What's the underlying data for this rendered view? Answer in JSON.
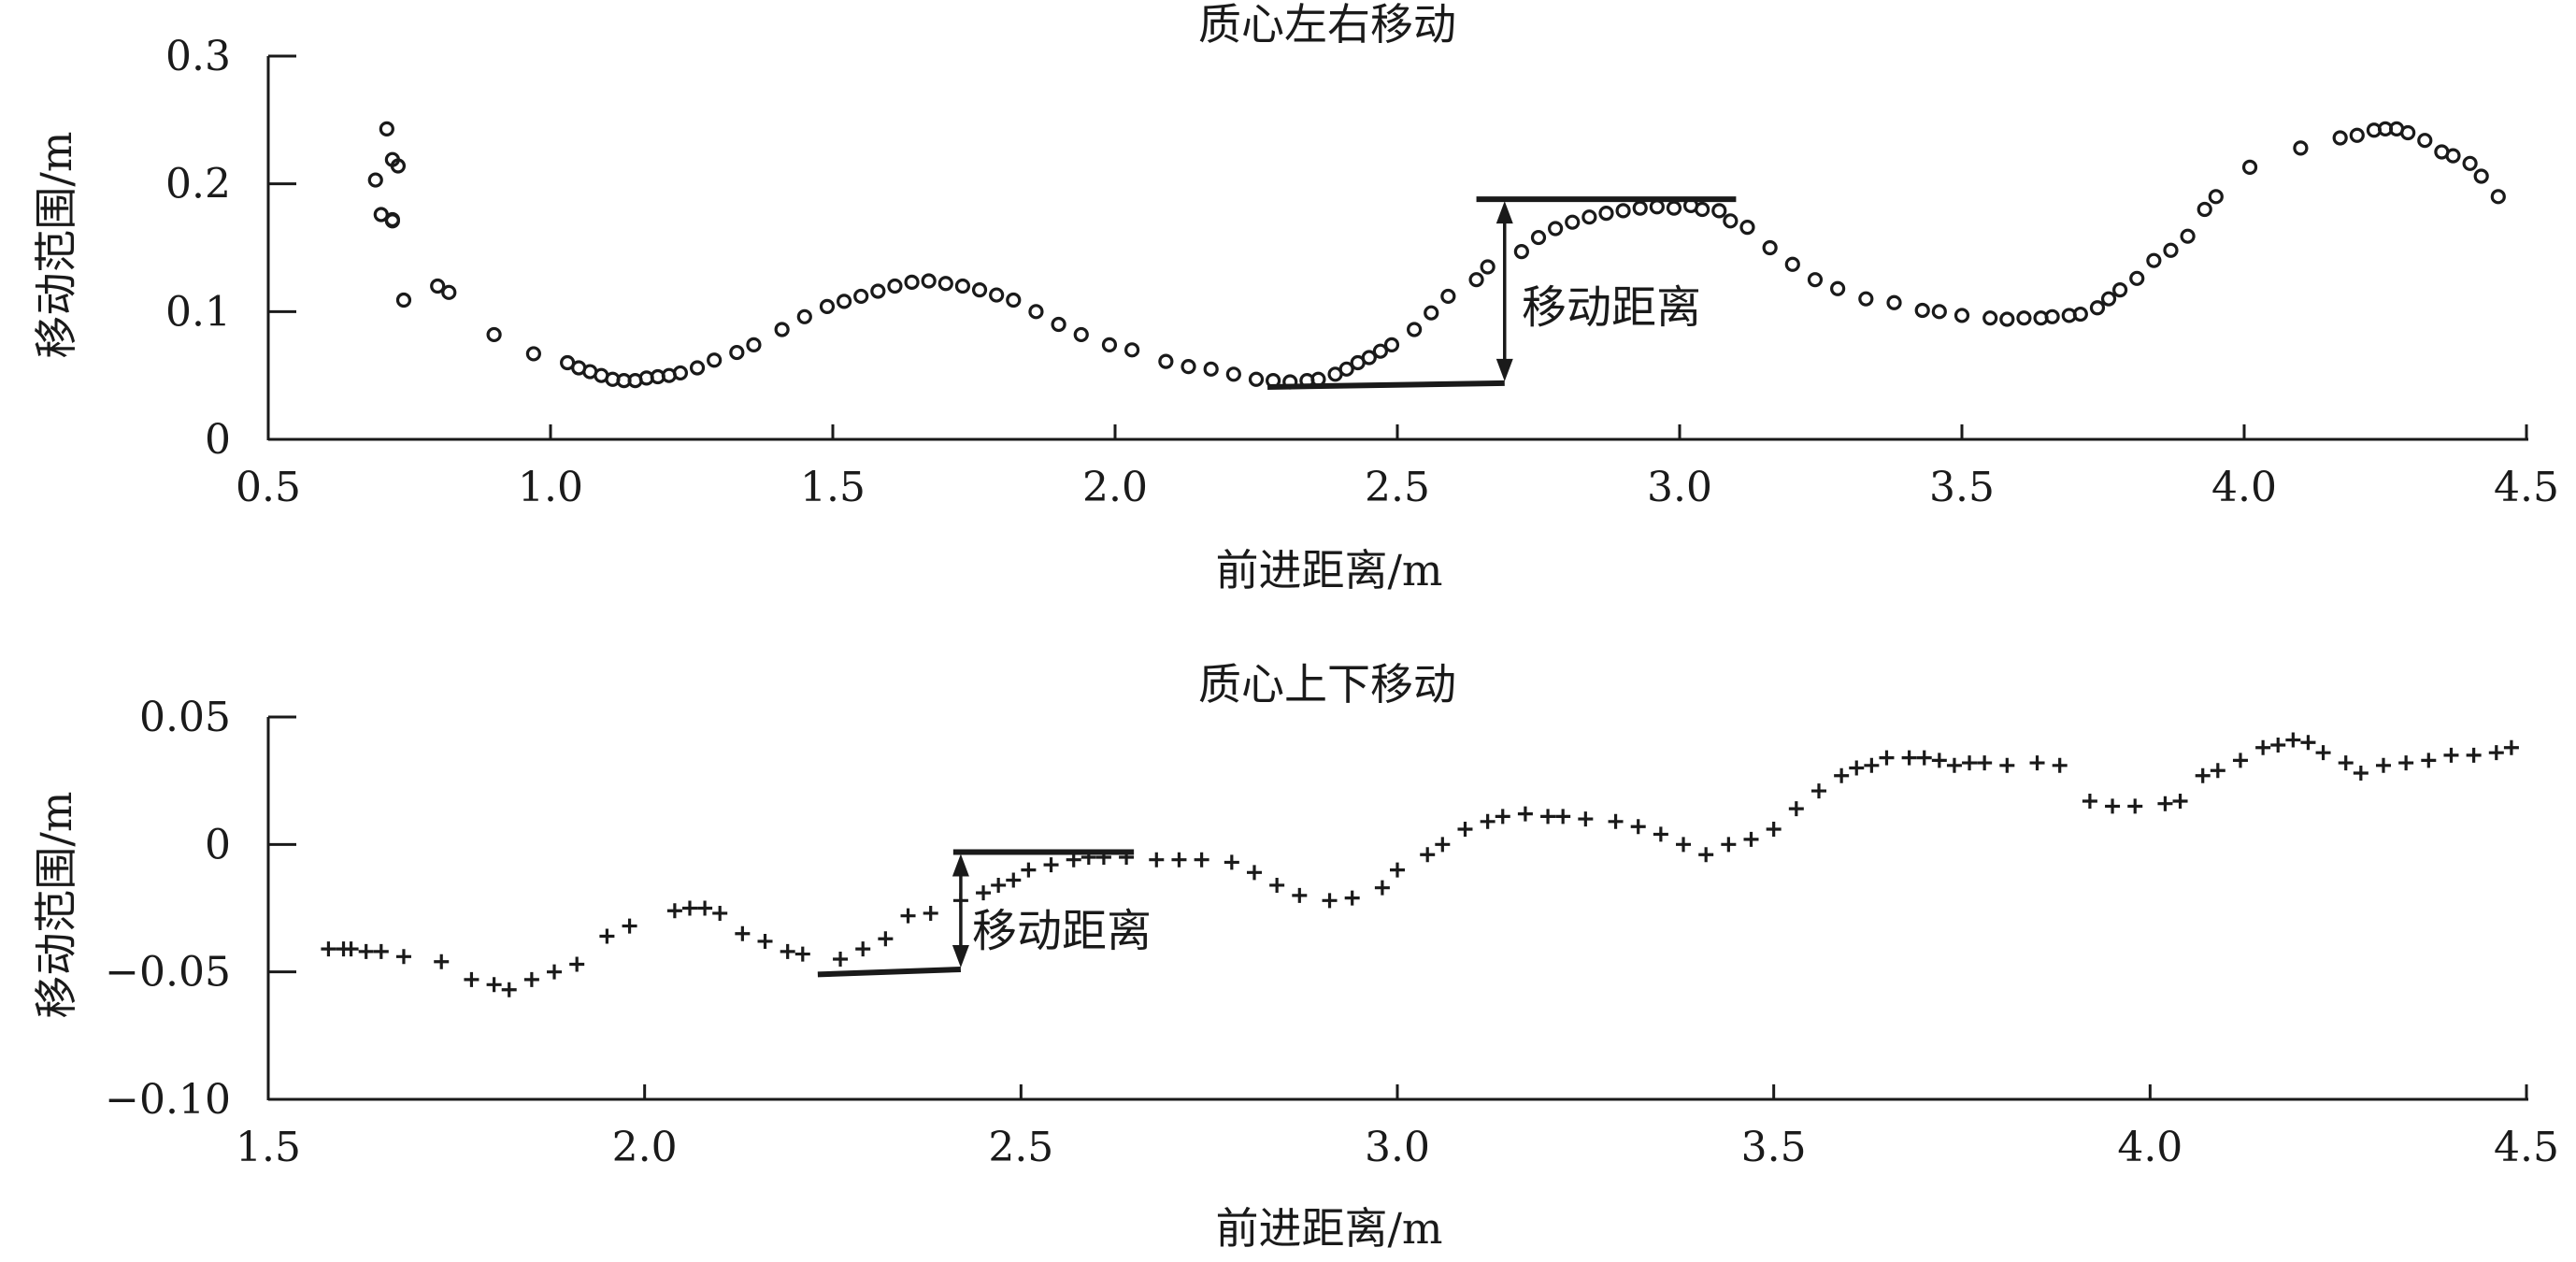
{
  "chart_data": [
    {
      "type": "scatter",
      "title": "质心左右移动",
      "xlabel": "前进距离/m",
      "ylabel": "移动范围/m",
      "xlim": [
        0.5,
        4.5
      ],
      "ylim": [
        0,
        0.3
      ],
      "x_ticks": [
        "0.5",
        "1.0",
        "1.5",
        "2.0",
        "2.5",
        "3.0",
        "3.5",
        "4.0",
        "4.5"
      ],
      "y_ticks": [
        "0",
        "0.1",
        "0.2",
        "0.3"
      ],
      "marker": "circle",
      "annotation": {
        "text": "移动距离",
        "x": 2.69,
        "y_low": 0.044,
        "y_high": 0.188,
        "low_line": {
          "x_start": 2.27,
          "x_end": 2.69,
          "y_start": 0.041,
          "y_end": 0.044
        },
        "high_line": {
          "x_start": 2.64,
          "x_end": 3.1,
          "y": 0.188
        }
      },
      "points": [
        [
          0.69,
          0.203
        ],
        [
          0.7,
          0.176
        ],
        [
          0.71,
          0.243
        ],
        [
          0.72,
          0.172
        ],
        [
          0.72,
          0.171
        ],
        [
          0.72,
          0.219
        ],
        [
          0.73,
          0.214
        ],
        [
          0.74,
          0.109
        ],
        [
          0.8,
          0.12
        ],
        [
          0.82,
          0.115
        ],
        [
          0.9,
          0.082
        ],
        [
          0.97,
          0.067
        ],
        [
          1.03,
          0.06
        ],
        [
          1.05,
          0.056
        ],
        [
          1.07,
          0.053
        ],
        [
          1.09,
          0.05
        ],
        [
          1.11,
          0.047
        ],
        [
          1.13,
          0.046
        ],
        [
          1.15,
          0.046
        ],
        [
          1.17,
          0.048
        ],
        [
          1.19,
          0.049
        ],
        [
          1.21,
          0.05
        ],
        [
          1.23,
          0.052
        ],
        [
          1.26,
          0.056
        ],
        [
          1.29,
          0.062
        ],
        [
          1.33,
          0.068
        ],
        [
          1.36,
          0.074
        ],
        [
          1.41,
          0.086
        ],
        [
          1.45,
          0.096
        ],
        [
          1.49,
          0.104
        ],
        [
          1.52,
          0.108
        ],
        [
          1.55,
          0.112
        ],
        [
          1.58,
          0.116
        ],
        [
          1.61,
          0.12
        ],
        [
          1.64,
          0.123
        ],
        [
          1.67,
          0.124
        ],
        [
          1.7,
          0.122
        ],
        [
          1.73,
          0.12
        ],
        [
          1.76,
          0.117
        ],
        [
          1.79,
          0.113
        ],
        [
          1.82,
          0.109
        ],
        [
          1.86,
          0.1
        ],
        [
          1.9,
          0.09
        ],
        [
          1.94,
          0.082
        ],
        [
          1.99,
          0.074
        ],
        [
          2.03,
          0.07
        ],
        [
          2.09,
          0.061
        ],
        [
          2.13,
          0.057
        ],
        [
          2.17,
          0.055
        ],
        [
          2.21,
          0.051
        ],
        [
          2.25,
          0.047
        ],
        [
          2.28,
          0.046
        ],
        [
          2.31,
          0.045
        ],
        [
          2.34,
          0.046
        ],
        [
          2.36,
          0.047
        ],
        [
          2.39,
          0.051
        ],
        [
          2.41,
          0.055
        ],
        [
          2.43,
          0.06
        ],
        [
          2.45,
          0.064
        ],
        [
          2.47,
          0.069
        ],
        [
          2.49,
          0.074
        ],
        [
          2.53,
          0.086
        ],
        [
          2.56,
          0.099
        ],
        [
          2.59,
          0.112
        ],
        [
          2.64,
          0.125
        ],
        [
          2.66,
          0.135
        ],
        [
          2.72,
          0.147
        ],
        [
          2.75,
          0.158
        ],
        [
          2.78,
          0.165
        ],
        [
          2.81,
          0.17
        ],
        [
          2.84,
          0.174
        ],
        [
          2.87,
          0.177
        ],
        [
          2.9,
          0.179
        ],
        [
          2.93,
          0.181
        ],
        [
          2.96,
          0.182
        ],
        [
          2.99,
          0.181
        ],
        [
          3.02,
          0.183
        ],
        [
          3.04,
          0.18
        ],
        [
          3.07,
          0.179
        ],
        [
          3.09,
          0.171
        ],
        [
          3.12,
          0.166
        ],
        [
          3.16,
          0.15
        ],
        [
          3.2,
          0.137
        ],
        [
          3.24,
          0.125
        ],
        [
          3.28,
          0.118
        ],
        [
          3.33,
          0.11
        ],
        [
          3.38,
          0.107
        ],
        [
          3.43,
          0.101
        ],
        [
          3.46,
          0.1
        ],
        [
          3.5,
          0.097
        ],
        [
          3.55,
          0.095
        ],
        [
          3.58,
          0.094
        ],
        [
          3.61,
          0.095
        ],
        [
          3.64,
          0.095
        ],
        [
          3.66,
          0.096
        ],
        [
          3.69,
          0.097
        ],
        [
          3.71,
          0.098
        ],
        [
          3.74,
          0.103
        ],
        [
          3.76,
          0.11
        ],
        [
          3.78,
          0.117
        ],
        [
          3.81,
          0.126
        ],
        [
          3.84,
          0.14
        ],
        [
          3.87,
          0.148
        ],
        [
          3.9,
          0.159
        ],
        [
          3.93,
          0.18
        ],
        [
          3.95,
          0.19
        ],
        [
          4.01,
          0.213
        ],
        [
          4.1,
          0.228
        ],
        [
          4.17,
          0.236
        ],
        [
          4.2,
          0.238
        ],
        [
          4.23,
          0.242
        ],
        [
          4.25,
          0.243
        ],
        [
          4.27,
          0.243
        ],
        [
          4.29,
          0.24
        ],
        [
          4.32,
          0.234
        ],
        [
          4.35,
          0.225
        ],
        [
          4.37,
          0.222
        ],
        [
          4.4,
          0.216
        ],
        [
          4.42,
          0.206
        ],
        [
          4.45,
          0.19
        ]
      ]
    },
    {
      "type": "scatter",
      "title": "质心上下移动",
      "xlabel": "前进距离/m",
      "ylabel": "移动范围/m",
      "xlim": [
        1.5,
        4.5
      ],
      "ylim": [
        -0.1,
        0.05
      ],
      "x_ticks": [
        "1.5",
        "2.0",
        "2.5",
        "3.0",
        "3.5",
        "4.0",
        "4.5"
      ],
      "y_ticks": [
        "−0.10",
        "−0.05",
        "0",
        "0.05"
      ],
      "marker": "plus",
      "annotation": {
        "text": "移动距离",
        "x": 2.42,
        "y_low": -0.049,
        "y_high": -0.003,
        "low_line": {
          "x_start": 2.23,
          "x_end": 2.42,
          "y_start": -0.051,
          "y_end": -0.049
        },
        "high_line": {
          "x_start": 2.41,
          "x_end": 2.65,
          "y": -0.003
        }
      },
      "points": [
        [
          1.58,
          -0.041
        ],
        [
          1.6,
          -0.041
        ],
        [
          1.61,
          -0.041
        ],
        [
          1.63,
          -0.042
        ],
        [
          1.65,
          -0.042
        ],
        [
          1.68,
          -0.044
        ],
        [
          1.73,
          -0.046
        ],
        [
          1.77,
          -0.053
        ],
        [
          1.8,
          -0.055
        ],
        [
          1.82,
          -0.057
        ],
        [
          1.85,
          -0.053
        ],
        [
          1.88,
          -0.05
        ],
        [
          1.91,
          -0.047
        ],
        [
          1.95,
          -0.036
        ],
        [
          1.98,
          -0.032
        ],
        [
          2.04,
          -0.026
        ],
        [
          2.06,
          -0.025
        ],
        [
          2.08,
          -0.025
        ],
        [
          2.1,
          -0.027
        ],
        [
          2.13,
          -0.035
        ],
        [
          2.16,
          -0.038
        ],
        [
          2.19,
          -0.042
        ],
        [
          2.21,
          -0.043
        ],
        [
          2.26,
          -0.045
        ],
        [
          2.29,
          -0.041
        ],
        [
          2.32,
          -0.037
        ],
        [
          2.35,
          -0.028
        ],
        [
          2.38,
          -0.027
        ],
        [
          2.42,
          -0.022
        ],
        [
          2.45,
          -0.019
        ],
        [
          2.47,
          -0.016
        ],
        [
          2.49,
          -0.014
        ],
        [
          2.51,
          -0.01
        ],
        [
          2.54,
          -0.008
        ],
        [
          2.57,
          -0.006
        ],
        [
          2.59,
          -0.005
        ],
        [
          2.61,
          -0.005
        ],
        [
          2.64,
          -0.005
        ],
        [
          2.68,
          -0.006
        ],
        [
          2.71,
          -0.006
        ],
        [
          2.74,
          -0.006
        ],
        [
          2.78,
          -0.007
        ],
        [
          2.81,
          -0.011
        ],
        [
          2.84,
          -0.016
        ],
        [
          2.87,
          -0.02
        ],
        [
          2.91,
          -0.022
        ],
        [
          2.94,
          -0.021
        ],
        [
          2.98,
          -0.017
        ],
        [
          3.0,
          -0.01
        ],
        [
          3.04,
          -0.004
        ],
        [
          3.06,
          0.0
        ],
        [
          3.09,
          0.006
        ],
        [
          3.12,
          0.009
        ],
        [
          3.14,
          0.011
        ],
        [
          3.17,
          0.012
        ],
        [
          3.2,
          0.011
        ],
        [
          3.22,
          0.011
        ],
        [
          3.25,
          0.01
        ],
        [
          3.29,
          0.009
        ],
        [
          3.32,
          0.007
        ],
        [
          3.35,
          0.004
        ],
        [
          3.38,
          0.0
        ],
        [
          3.41,
          -0.004
        ],
        [
          3.44,
          0.0
        ],
        [
          3.47,
          0.002
        ],
        [
          3.5,
          0.006
        ],
        [
          3.53,
          0.014
        ],
        [
          3.56,
          0.021
        ],
        [
          3.59,
          0.027
        ],
        [
          3.61,
          0.03
        ],
        [
          3.63,
          0.031
        ],
        [
          3.65,
          0.034
        ],
        [
          3.68,
          0.034
        ],
        [
          3.7,
          0.034
        ],
        [
          3.72,
          0.033
        ],
        [
          3.74,
          0.031
        ],
        [
          3.76,
          0.032
        ],
        [
          3.78,
          0.032
        ],
        [
          3.81,
          0.031
        ],
        [
          3.85,
          0.032
        ],
        [
          3.88,
          0.031
        ],
        [
          3.92,
          0.017
        ],
        [
          3.95,
          0.015
        ],
        [
          3.98,
          0.015
        ],
        [
          4.02,
          0.016
        ],
        [
          4.04,
          0.017
        ],
        [
          4.07,
          0.027
        ],
        [
          4.09,
          0.029
        ],
        [
          4.12,
          0.033
        ],
        [
          4.15,
          0.038
        ],
        [
          4.17,
          0.039
        ],
        [
          4.19,
          0.041
        ],
        [
          4.21,
          0.04
        ],
        [
          4.23,
          0.036
        ],
        [
          4.26,
          0.032
        ],
        [
          4.28,
          0.028
        ],
        [
          4.31,
          0.031
        ],
        [
          4.34,
          0.032
        ],
        [
          4.37,
          0.033
        ],
        [
          4.4,
          0.035
        ],
        [
          4.43,
          0.035
        ],
        [
          4.46,
          0.036
        ],
        [
          4.48,
          0.038
        ]
      ]
    }
  ]
}
